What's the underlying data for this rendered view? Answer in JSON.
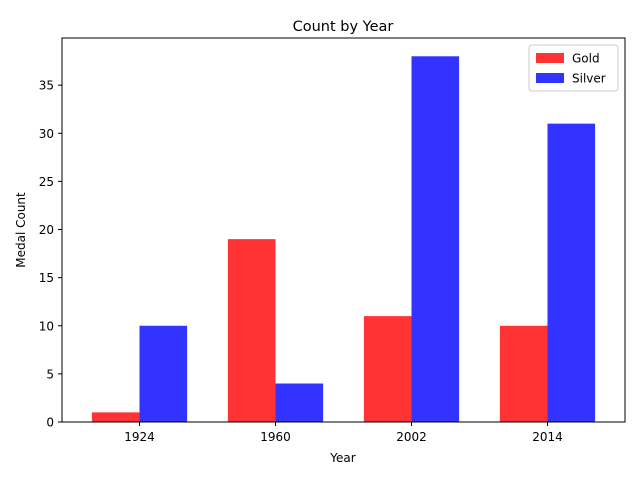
{
  "chart_data": {
    "type": "bar",
    "title": "Count by Year",
    "xlabel": "Year",
    "ylabel": "Medal Count",
    "categories": [
      "1924",
      "1960",
      "2002",
      "2014"
    ],
    "series": [
      {
        "name": "Gold",
        "values": [
          1,
          19,
          11,
          10
        ],
        "color": "#ff3333"
      },
      {
        "name": "Silver",
        "values": [
          10,
          4,
          38,
          31
        ],
        "color": "#3333ff"
      }
    ],
    "ylim": [
      0,
      39.9
    ],
    "yticks": [
      0,
      5,
      10,
      15,
      20,
      25,
      30,
      35
    ],
    "grid": false,
    "legend_position": "top-right"
  }
}
